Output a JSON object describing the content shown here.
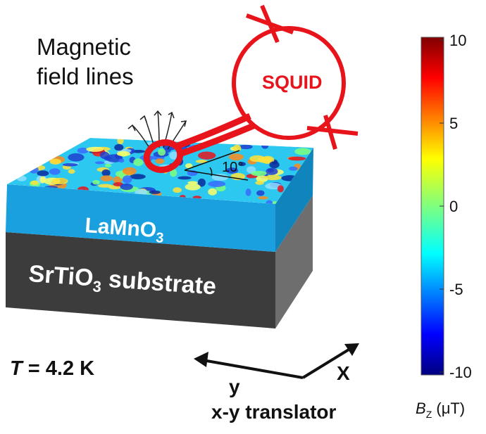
{
  "labels": {
    "field_lines_line1": "Magnetic",
    "field_lines_line2": "field lines",
    "squid": "SQUID",
    "angle": "10°",
    "film_base": "LaMnO",
    "film_sub": "3",
    "substrate_base": "SrTiO",
    "substrate_sub": "3",
    "substrate_rest": " substrate",
    "temperature_var": "T",
    "temperature_rest": " = 4.2 K",
    "axis_y": "y",
    "axis_x": "X",
    "translator": "x-y translator"
  },
  "colorbar": {
    "ticks": [
      "10",
      "5",
      "0",
      "-5",
      "-10"
    ],
    "label_base": "B",
    "label_sub": "Z",
    "label_unit": " (μT)",
    "min": -10,
    "max": 10
  },
  "colors": {
    "squid_red": "#e8141c",
    "film_blue": "#1aa0de",
    "substrate_front": "#3c3c3c",
    "substrate_side": "#6e6e6e",
    "film_side": "#0f84bd"
  }
}
